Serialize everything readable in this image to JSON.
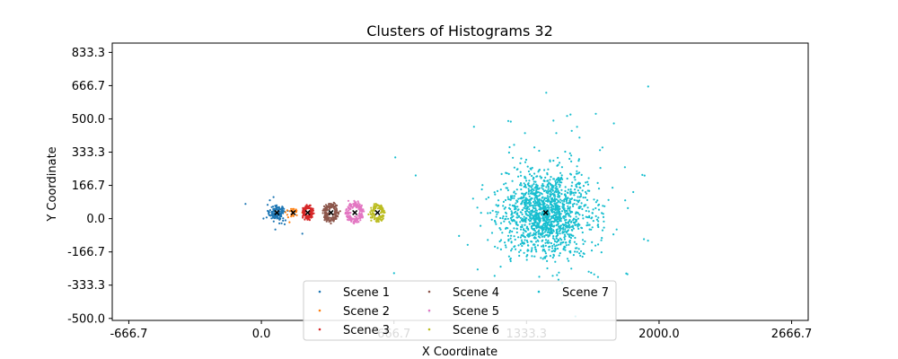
{
  "chart_data": {
    "type": "scatter",
    "title": "Clusters of Histograms 32",
    "xlabel": "X Coordinate",
    "ylabel": "Y Coordinate",
    "xlim": [
      -750,
      2750
    ],
    "ylim": [
      -510,
      880
    ],
    "x_ticks": [
      -666.7,
      0.0,
      666.7,
      1333.3,
      2000.0,
      2666.7
    ],
    "x_tick_labels": [
      "-666.7",
      "0.0",
      "666.7",
      "1333.3",
      "2000.0",
      "2666.7"
    ],
    "y_ticks": [
      833.3,
      666.7,
      500.0,
      333.3,
      166.7,
      0.0,
      -166.7,
      -333.3,
      -500.0
    ],
    "y_tick_labels": [
      "833.3",
      "666.7",
      "500.0",
      "333.3",
      "166.7",
      "0.0",
      "-166.7",
      "-333.3",
      "-500.0"
    ],
    "grid": false,
    "legend_placement": "lower-center",
    "legend_columns": 3,
    "centroid_marker": "x",
    "centroid_color": "#000000",
    "series": [
      {
        "name": "Scene 1",
        "color": "#1f77b4",
        "center": [
          78,
          30
        ],
        "spread": 22,
        "count": 140,
        "shape": "blob"
      },
      {
        "name": "Scene 2",
        "color": "#ff7f0e",
        "center": [
          160,
          30
        ],
        "spread": 12,
        "count": 30,
        "shape": "blob"
      },
      {
        "name": "Scene 3",
        "color": "#d62728",
        "center": [
          233,
          30
        ],
        "spread": 28,
        "count": 130,
        "shape": "ring"
      },
      {
        "name": "Scene 4",
        "color": "#8c564b",
        "center": [
          350,
          30
        ],
        "spread": 40,
        "count": 160,
        "shape": "ring"
      },
      {
        "name": "Scene 5",
        "color": "#e377c2",
        "center": [
          470,
          30
        ],
        "spread": 45,
        "count": 160,
        "shape": "ring"
      },
      {
        "name": "Scene 6",
        "color": "#bcbd22",
        "center": [
          584,
          30
        ],
        "spread": 38,
        "count": 130,
        "shape": "ring"
      },
      {
        "name": "Scene 7",
        "color": "#17becf",
        "center": [
          1430,
          30
        ],
        "spread": 110,
        "count": 1500,
        "shape": "blob"
      }
    ]
  }
}
